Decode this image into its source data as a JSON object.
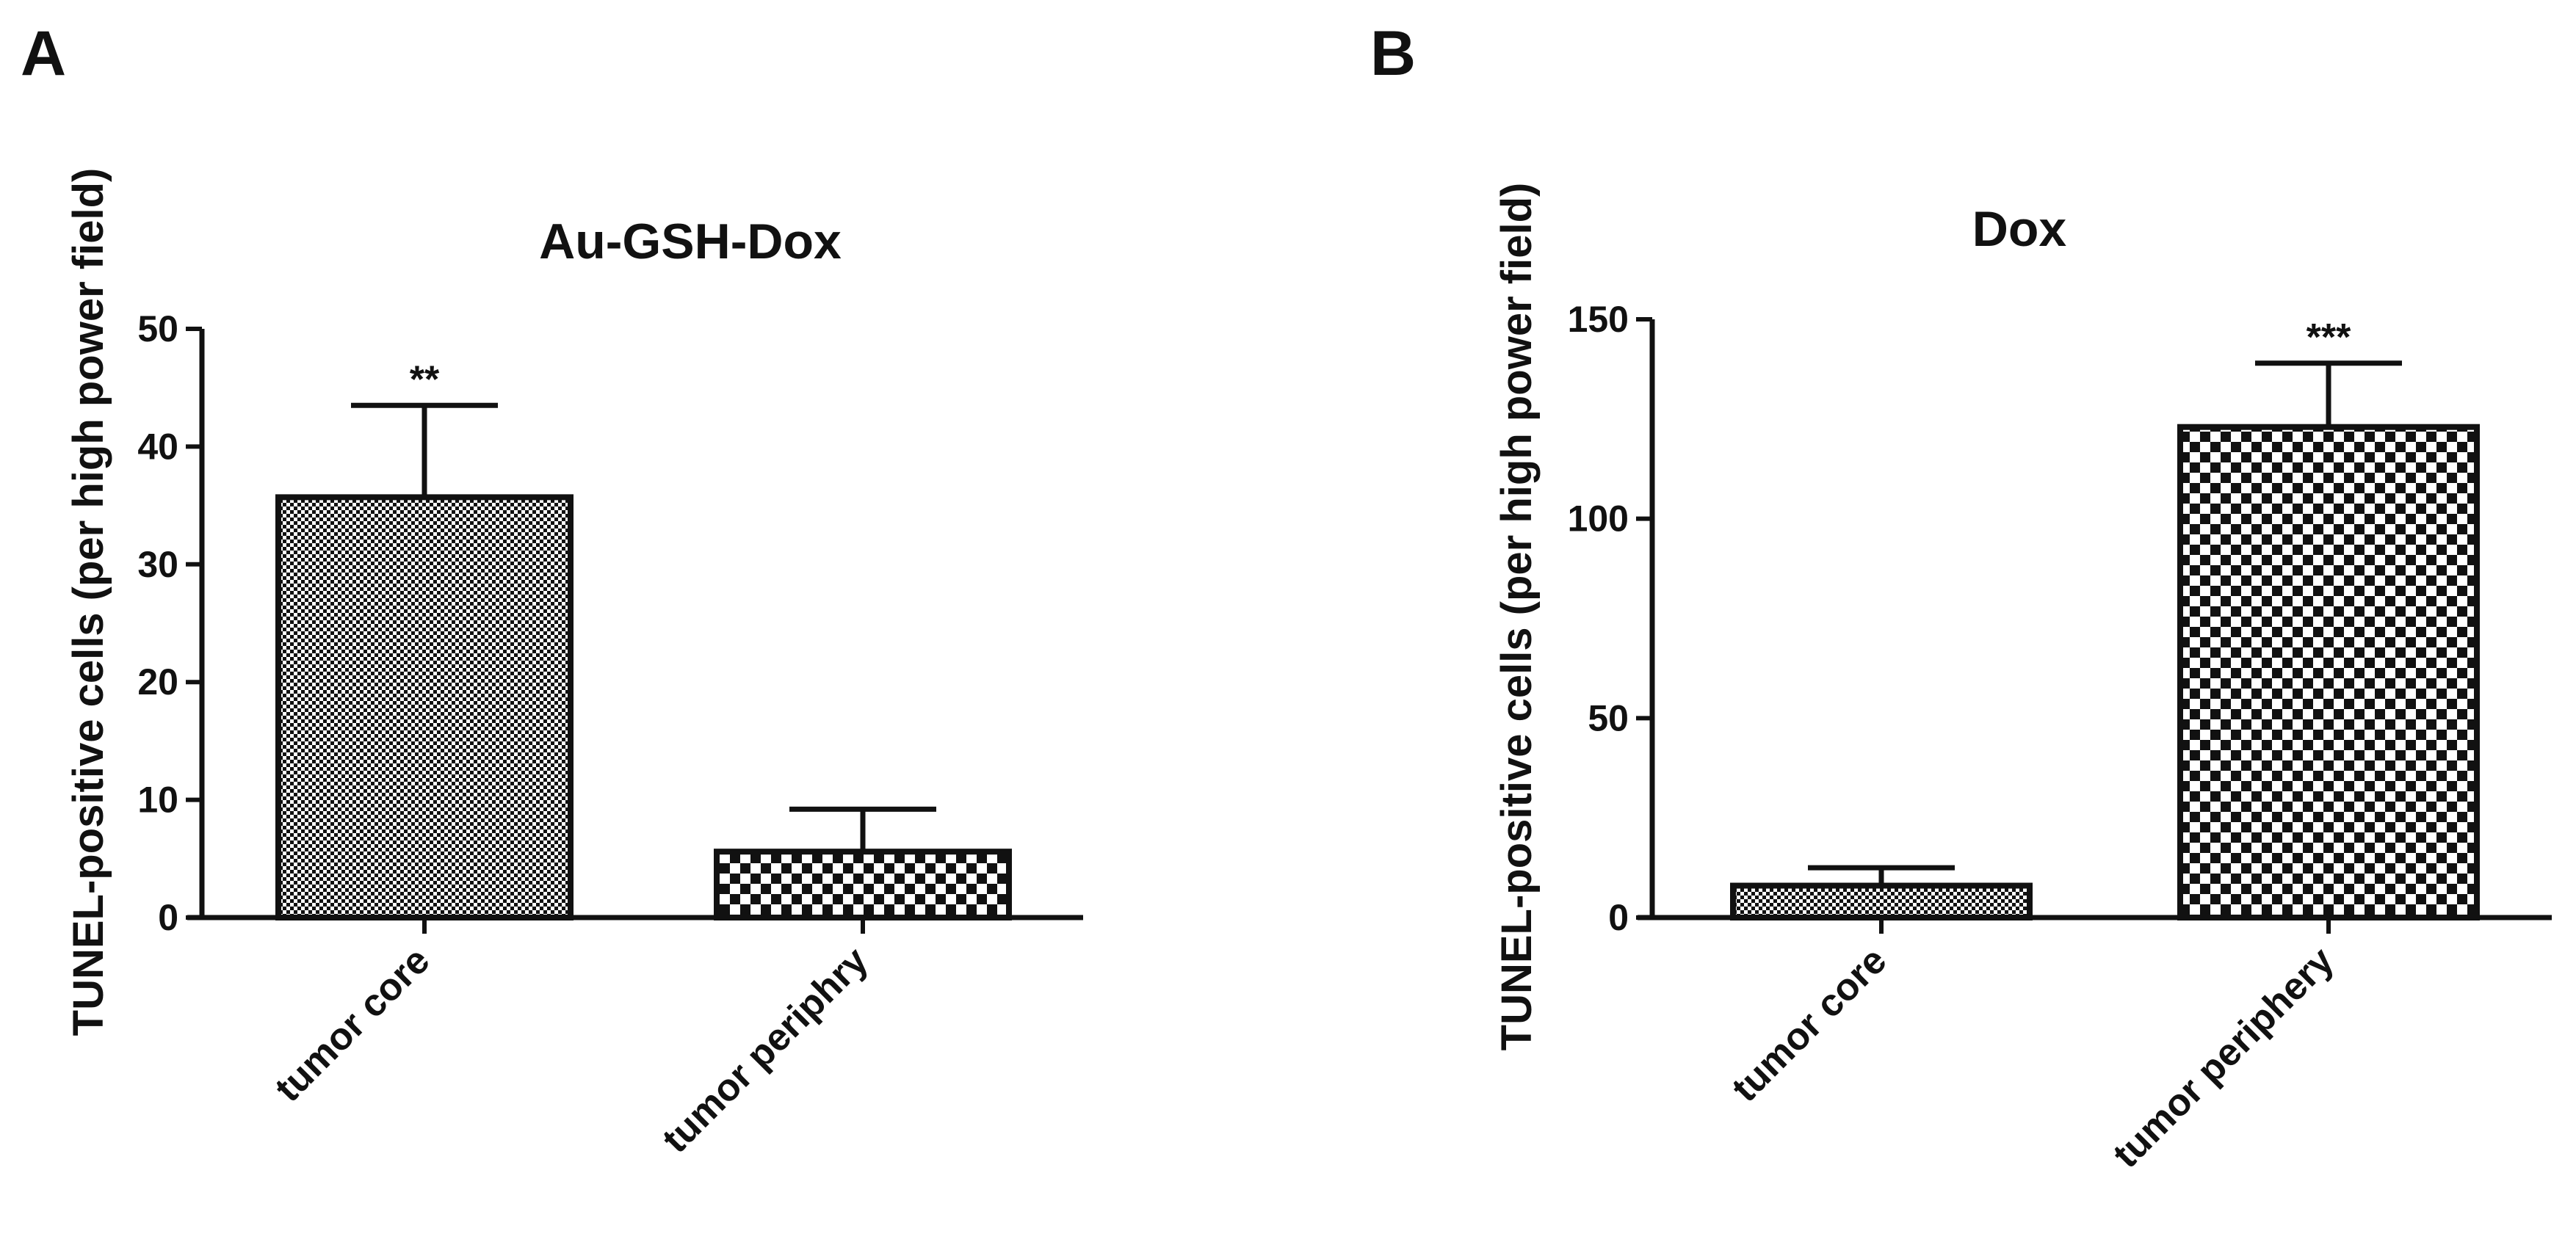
{
  "panels": [
    {
      "letter": "A"
    },
    {
      "letter": "B"
    }
  ],
  "chart_data": [
    {
      "type": "bar",
      "title": "Au-GSH-Dox",
      "xlabel": "",
      "ylabel": "TUNEL-positive cells (per high power field)",
      "categories": [
        "tumor core",
        "tumor periphry"
      ],
      "values": [
        35.7,
        5.6
      ],
      "error": [
        7.8,
        3.6
      ],
      "significance": [
        "**",
        ""
      ],
      "ylim": [
        0,
        50
      ],
      "yticks": [
        0,
        10,
        20,
        30,
        40,
        50
      ],
      "ytick_labels": [
        "0",
        "10",
        "20",
        "30",
        "40",
        "50"
      ],
      "patterns": [
        "fine-check",
        "coarse-check"
      ]
    },
    {
      "type": "bar",
      "title": "Dox",
      "xlabel": "",
      "ylabel": "TUNEL-positive cells (per high power field)",
      "categories": [
        "tumor core",
        "tumor periphery"
      ],
      "values": [
        8,
        123
      ],
      "error": [
        4.5,
        16
      ],
      "significance": [
        "",
        "***"
      ],
      "ylim": [
        0,
        150
      ],
      "yticks": [
        0,
        50,
        100,
        150
      ],
      "ytick_labels": [
        "0",
        "50",
        "100",
        "150"
      ],
      "patterns": [
        "fine-check",
        "coarse-check"
      ]
    }
  ]
}
